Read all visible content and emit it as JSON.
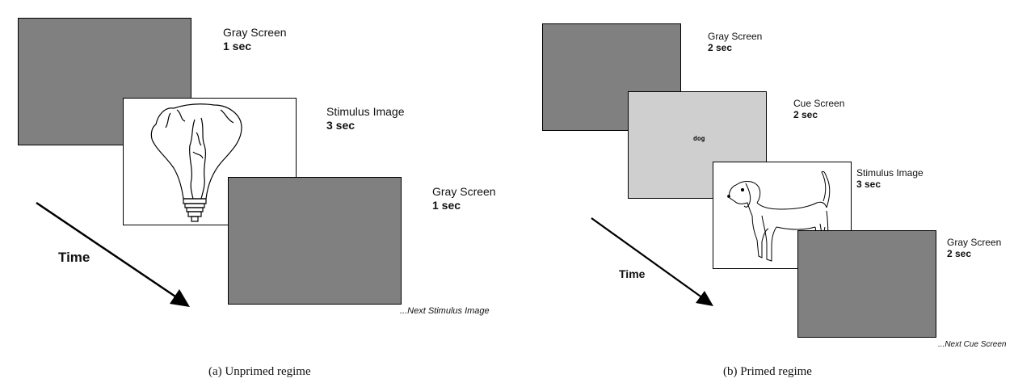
{
  "unprimed": {
    "screens": [
      {
        "name": "Gray Screen",
        "duration": "1 sec"
      },
      {
        "name": "Stimulus Image",
        "duration": "3 sec",
        "image": "lightbulb-drawing"
      },
      {
        "name": "Gray Screen",
        "duration": "1 sec"
      }
    ],
    "next_label": "...Next Stimulus Image",
    "time_label": "Time",
    "caption": "(a) Unprimed regime"
  },
  "primed": {
    "screens": [
      {
        "name": "Gray Screen",
        "duration": "2 sec"
      },
      {
        "name": "Cue Screen",
        "duration": "2 sec",
        "cue_word": "dog"
      },
      {
        "name": "Stimulus Image",
        "duration": "3 sec",
        "image": "dog-drawing"
      },
      {
        "name": "Gray Screen",
        "duration": "2 sec"
      }
    ],
    "next_label": "...Next Cue Screen",
    "time_label": "Time",
    "caption": "(b) Primed regime"
  },
  "colors": {
    "gray_screen": "#808080",
    "cue_screen": "#cfcfcf",
    "stimulus_bg": "#ffffff"
  }
}
